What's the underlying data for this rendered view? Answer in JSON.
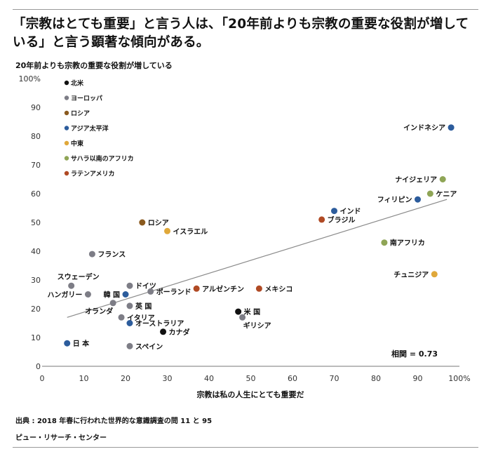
{
  "headline": "「宗教はとても重要」と言う人は、「20年前よりも宗教の重要な役割が増している」と言う顕著な傾向がある。",
  "source": "出典 : 2018 年春に行われた世界的な意識調査の問 11 と 95",
  "credit": "ピュー・リサーチ・センター",
  "chart_data": {
    "type": "scatter",
    "title": "",
    "xlabel": "宗教は私の人生にとても重要だ",
    "ylabel": "20年前よりも宗教の重要な役割が増している",
    "xlim": [
      0,
      100
    ],
    "ylim": [
      0,
      100
    ],
    "x_ticks": [
      "0",
      "10",
      "20",
      "30",
      "40",
      "50",
      "60",
      "70",
      "80",
      "90",
      "100%"
    ],
    "y_ticks": [
      "0",
      "10",
      "20",
      "30",
      "40",
      "50",
      "60",
      "70",
      "80",
      "90",
      "100%"
    ],
    "grid": false,
    "legend_position": "top-left",
    "correlation_label": "相関 = 0.73",
    "trendline": {
      "x": [
        6,
        97
      ],
      "y": [
        17,
        58
      ]
    },
    "regions": [
      {
        "name": "北米",
        "color": "#111111"
      },
      {
        "name": "ヨーロッパ",
        "color": "#7d7d86"
      },
      {
        "name": "ロシア",
        "color": "#8a5a1e"
      },
      {
        "name": "アジア太平洋",
        "color": "#2c5c9c"
      },
      {
        "name": "中東",
        "color": "#e0a83a"
      },
      {
        "name": "サハラ以南のアフリカ",
        "color": "#8fa556"
      },
      {
        "name": "ラテンアメリカ",
        "color": "#b04a24"
      }
    ],
    "points": [
      {
        "label": "インドネシア",
        "region": 3,
        "x": 98,
        "y": 83,
        "pos": "left"
      },
      {
        "label": "ナイジェリア",
        "region": 5,
        "x": 96,
        "y": 65,
        "pos": "left"
      },
      {
        "label": "ケニア",
        "region": 5,
        "x": 93,
        "y": 60,
        "pos": "right"
      },
      {
        "label": "フィリピン",
        "region": 3,
        "x": 90,
        "y": 58,
        "pos": "left"
      },
      {
        "label": "インド",
        "region": 3,
        "x": 70,
        "y": 54,
        "pos": "right"
      },
      {
        "label": "ブラジル",
        "region": 6,
        "x": 67,
        "y": 51,
        "pos": "right"
      },
      {
        "label": "南アフリカ",
        "region": 5,
        "x": 82,
        "y": 43,
        "pos": "right"
      },
      {
        "label": "チュニジア",
        "region": 4,
        "x": 94,
        "y": 32,
        "pos": "left"
      },
      {
        "label": "ロシア",
        "region": 2,
        "x": 24,
        "y": 50,
        "pos": "right"
      },
      {
        "label": "イスラエル",
        "region": 4,
        "x": 30,
        "y": 47,
        "pos": "right"
      },
      {
        "label": "フランス",
        "region": 1,
        "x": 12,
        "y": 39,
        "pos": "right"
      },
      {
        "label": "スウェーデン",
        "region": 1,
        "x": 7,
        "y": 28,
        "pos": "above"
      },
      {
        "label": "ハンガリー",
        "region": 1,
        "x": 11,
        "y": 25,
        "pos": "left"
      },
      {
        "label": "ドイツ",
        "region": 1,
        "x": 21,
        "y": 28,
        "pos": "right"
      },
      {
        "label": "韓 国",
        "region": 3,
        "x": 20,
        "y": 25,
        "pos": "left"
      },
      {
        "label": "ポーランド",
        "region": 1,
        "x": 26,
        "y": 26,
        "pos": "right"
      },
      {
        "label": "オランダ",
        "region": 1,
        "x": 17,
        "y": 22,
        "pos": "below"
      },
      {
        "label": "英 国",
        "region": 1,
        "x": 21,
        "y": 21,
        "pos": "right"
      },
      {
        "label": "イタリア",
        "region": 1,
        "x": 19,
        "y": 17,
        "pos": "right"
      },
      {
        "label": "オーストラリア",
        "region": 3,
        "x": 21,
        "y": 15,
        "pos": "right"
      },
      {
        "label": "カナダ",
        "region": 0,
        "x": 29,
        "y": 12,
        "pos": "right"
      },
      {
        "label": "日 本",
        "region": 3,
        "x": 6,
        "y": 8,
        "pos": "right"
      },
      {
        "label": "スペイン",
        "region": 1,
        "x": 21,
        "y": 7,
        "pos": "right"
      },
      {
        "label": "アルゼンチン",
        "region": 6,
        "x": 37,
        "y": 27,
        "pos": "right"
      },
      {
        "label": "メキシコ",
        "region": 6,
        "x": 52,
        "y": 27,
        "pos": "right"
      },
      {
        "label": "米 国",
        "region": 0,
        "x": 47,
        "y": 19,
        "pos": "right"
      },
      {
        "label": "ギリシア",
        "region": 1,
        "x": 48,
        "y": 17,
        "pos": "below-right"
      }
    ]
  }
}
